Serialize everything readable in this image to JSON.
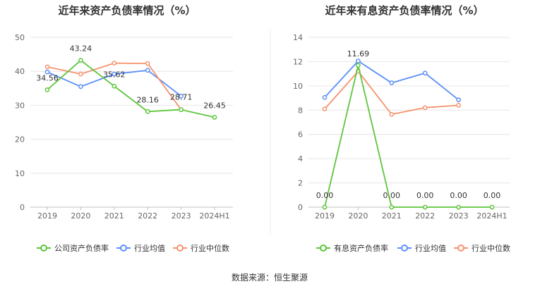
{
  "source": "数据来源：恒生聚源",
  "colors": {
    "company": "#5cc63a",
    "industry_avg": "#5b8ff9",
    "industry_median": "#f6926c",
    "grid": "#e6e6e6",
    "axis": "#bfbfbf"
  },
  "chart_data": [
    {
      "type": "line",
      "title": "近年来资产负债率情况（%）",
      "categories": [
        "2019",
        "2020",
        "2021",
        "2022",
        "2023",
        "2024H1"
      ],
      "ylim": [
        0,
        50
      ],
      "yticks": [
        "0",
        "10",
        "20",
        "30",
        "40",
        "50"
      ],
      "grid": true,
      "legend_position": "bottom",
      "series": [
        {
          "name": "公司资产负债率",
          "color_key": "company",
          "values": [
            34.56,
            43.24,
            35.62,
            28.16,
            28.71,
            26.45
          ],
          "labels": [
            "34.56",
            "43.24",
            "35.62",
            "28.16",
            "28.71",
            "26.45"
          ]
        },
        {
          "name": "行业均值",
          "color_key": "industry_avg",
          "values": [
            39.8,
            35.5,
            39.2,
            40.3,
            32.7,
            null
          ]
        },
        {
          "name": "行业中位数",
          "color_key": "industry_median",
          "values": [
            41.3,
            39.2,
            42.4,
            42.3,
            28.7,
            null
          ]
        }
      ]
    },
    {
      "type": "line",
      "title": "近年来有息资产负债率情况（%）",
      "categories": [
        "2019",
        "2020",
        "2021",
        "2022",
        "2023",
        "2024H1"
      ],
      "ylim": [
        0,
        14
      ],
      "yticks": [
        "0",
        "2",
        "4",
        "6",
        "8",
        "10",
        "12",
        "14"
      ],
      "grid": true,
      "legend_position": "bottom",
      "series": [
        {
          "name": "有息资产负债率",
          "color_key": "company",
          "values": [
            0.0,
            11.69,
            0.0,
            0.0,
            0.0,
            0.0
          ],
          "labels": [
            "0.00",
            "11.69",
            "0.00",
            "0.00",
            "0.00",
            "0.00"
          ]
        },
        {
          "name": "行业均值",
          "color_key": "industry_avg",
          "values": [
            9.05,
            12.05,
            10.25,
            11.05,
            8.85,
            null
          ]
        },
        {
          "name": "行业中位数",
          "color_key": "industry_median",
          "values": [
            8.1,
            11.2,
            7.65,
            8.2,
            8.4,
            null
          ]
        }
      ]
    }
  ]
}
